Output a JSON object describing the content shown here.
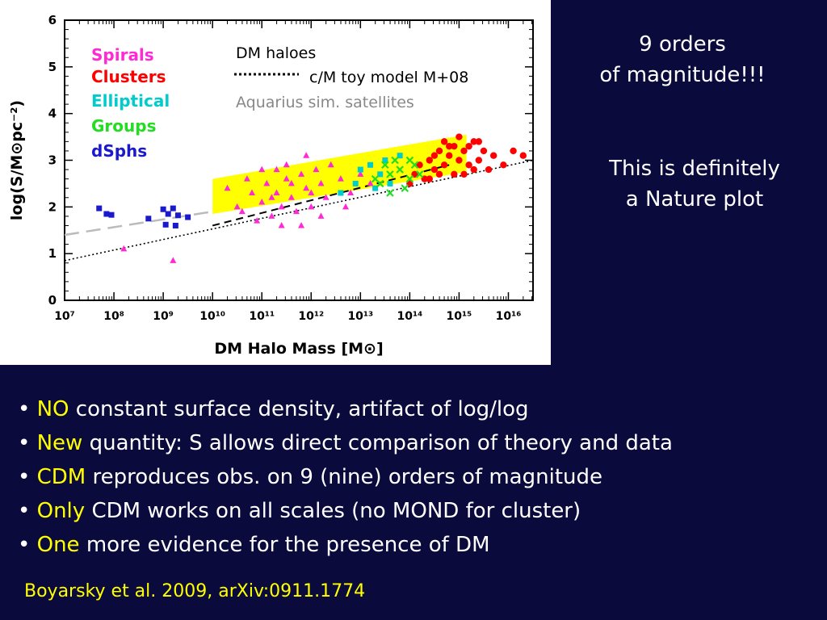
{
  "chart_data": {
    "type": "scatter",
    "xlabel": "DM Halo Mass [M⊙]",
    "ylabel": "log(S/M⊙pc⁻²)",
    "xscale": "log",
    "xlim_exp": [
      7,
      16.5
    ],
    "ylim": [
      0,
      6
    ],
    "x_tick_labels": [
      "10⁷",
      "10⁸",
      "10⁹",
      "10¹⁰",
      "10¹¹",
      "10¹²",
      "10¹³",
      "10¹⁴",
      "10¹⁵",
      "10¹⁶"
    ],
    "x_tick_exps": [
      7,
      8,
      9,
      10,
      11,
      12,
      13,
      14,
      15,
      16
    ],
    "y_tick_labels": [
      "0",
      "1",
      "2",
      "3",
      "4",
      "5",
      "6"
    ],
    "y_tick_values": [
      0,
      1,
      2,
      3,
      4,
      5,
      6
    ],
    "band": {
      "label": "DM haloes",
      "color": "#ffff00",
      "polygon": [
        [
          10,
          1.85
        ],
        [
          10,
          2.6
        ],
        [
          15.15,
          3.55
        ],
        [
          15.15,
          2.75
        ]
      ]
    },
    "lines": [
      {
        "name": "c/M toy model M+08",
        "style": "dotted",
        "color": "#000000",
        "points": [
          [
            7,
            0.85
          ],
          [
            16.5,
            3.0
          ]
        ]
      },
      {
        "name": "",
        "style": "dashed",
        "color": "#000000",
        "points": [
          [
            10,
            1.6
          ],
          [
            14.8,
            2.9
          ]
        ]
      },
      {
        "name": "Aquarius sim. satellites",
        "style": "long-dash",
        "color": "#bbbbbb",
        "points": [
          [
            7,
            1.4
          ],
          [
            10,
            1.9
          ]
        ]
      }
    ],
    "series": [
      {
        "name": "Spirals",
        "color": "#ff2ad4",
        "marker": "triangle",
        "points": [
          [
            8.2,
            1.1
          ],
          [
            9.2,
            0.85
          ],
          [
            10.3,
            2.4
          ],
          [
            10.6,
            1.9
          ],
          [
            10.8,
            2.3
          ],
          [
            10.9,
            1.7
          ],
          [
            11.0,
            2.1
          ],
          [
            11.1,
            2.5
          ],
          [
            11.2,
            1.8
          ],
          [
            11.3,
            2.3
          ],
          [
            11.4,
            2.0
          ],
          [
            11.5,
            2.6
          ],
          [
            11.6,
            2.2
          ],
          [
            11.7,
            1.9
          ],
          [
            11.8,
            2.7
          ],
          [
            11.9,
            2.4
          ],
          [
            12.0,
            2.0
          ],
          [
            12.1,
            2.8
          ],
          [
            12.2,
            2.5
          ],
          [
            11.3,
            2.8
          ],
          [
            11.5,
            2.9
          ],
          [
            11.9,
            3.1
          ],
          [
            12.3,
            2.2
          ],
          [
            12.6,
            2.6
          ],
          [
            12.8,
            2.3
          ],
          [
            13.0,
            2.7
          ],
          [
            11.0,
            2.8
          ],
          [
            10.7,
            2.6
          ],
          [
            11.4,
            1.6
          ],
          [
            11.8,
            1.6
          ],
          [
            12.4,
            2.9
          ],
          [
            12.7,
            2.0
          ],
          [
            10.5,
            2.0
          ],
          [
            11.6,
            2.5
          ],
          [
            12.2,
            1.8
          ],
          [
            13.2,
            2.5
          ],
          [
            11.2,
            2.2
          ],
          [
            12.0,
            2.3
          ]
        ]
      },
      {
        "name": "Clusters",
        "color": "#ff0000",
        "marker": "circle",
        "points": [
          [
            14.0,
            2.5
          ],
          [
            14.2,
            2.9
          ],
          [
            14.3,
            2.6
          ],
          [
            14.4,
            3.0
          ],
          [
            14.5,
            2.8
          ],
          [
            14.6,
            3.2
          ],
          [
            14.7,
            2.9
          ],
          [
            14.8,
            3.1
          ],
          [
            14.9,
            3.3
          ],
          [
            15.0,
            3.0
          ],
          [
            15.1,
            3.2
          ],
          [
            15.2,
            2.9
          ],
          [
            15.3,
            3.4
          ],
          [
            15.4,
            3.0
          ],
          [
            15.5,
            3.2
          ],
          [
            15.6,
            2.8
          ],
          [
            15.7,
            3.1
          ],
          [
            14.6,
            2.7
          ],
          [
            14.8,
            3.3
          ],
          [
            15.0,
            3.5
          ],
          [
            15.2,
            3.3
          ],
          [
            14.4,
            2.6
          ],
          [
            14.7,
            3.4
          ],
          [
            15.3,
            2.8
          ],
          [
            14.9,
            2.7
          ],
          [
            15.1,
            2.7
          ],
          [
            16.1,
            3.2
          ],
          [
            16.3,
            3.1
          ],
          [
            15.9,
            2.9
          ],
          [
            14.5,
            3.1
          ],
          [
            15.4,
            3.4
          ],
          [
            14.1,
            2.7
          ]
        ]
      },
      {
        "name": "Elliptical",
        "color": "#00cccc",
        "marker": "square",
        "points": [
          [
            12.6,
            2.3
          ],
          [
            13.0,
            2.8
          ],
          [
            13.2,
            2.9
          ],
          [
            13.5,
            3.0
          ],
          [
            13.8,
            3.1
          ],
          [
            13.3,
            2.4
          ],
          [
            13.6,
            2.5
          ],
          [
            12.9,
            2.5
          ],
          [
            13.4,
            2.7
          ]
        ]
      },
      {
        "name": "Groups",
        "color": "#22dd22",
        "marker": "cross",
        "points": [
          [
            13.3,
            2.6
          ],
          [
            13.5,
            2.9
          ],
          [
            13.6,
            2.7
          ],
          [
            13.8,
            2.8
          ],
          [
            14.0,
            2.6
          ],
          [
            14.1,
            2.9
          ],
          [
            13.7,
            3.0
          ],
          [
            13.4,
            2.5
          ],
          [
            13.9,
            2.4
          ],
          [
            14.2,
            2.7
          ],
          [
            13.6,
            2.3
          ],
          [
            14.0,
            3.0
          ]
        ]
      },
      {
        "name": "dSphs",
        "color": "#1a1acc",
        "marker": "square",
        "points": [
          [
            7.7,
            1.97
          ],
          [
            7.85,
            1.85
          ],
          [
            7.95,
            1.83
          ],
          [
            8.7,
            1.75
          ],
          [
            9.0,
            1.95
          ],
          [
            9.1,
            1.85
          ],
          [
            9.2,
            1.97
          ],
          [
            9.3,
            1.82
          ],
          [
            9.5,
            1.78
          ],
          [
            9.25,
            1.6
          ],
          [
            9.05,
            1.62
          ]
        ]
      }
    ]
  },
  "legend": {
    "spirals": "Spirals",
    "clusters": "Clusters",
    "elliptical": "Elliptical",
    "groups": "Groups",
    "dsphs": "dSphs",
    "dm_haloes": "DM haloes",
    "toy_model": "c/M toy model M+08",
    "aquarius": "Aquarius sim. satellites"
  },
  "notes": {
    "orders_line1": "9 orders",
    "orders_line2": "of magnitude!!!",
    "nature_line1": "This is definitely",
    "nature_line2": "a Nature plot"
  },
  "bullets": [
    {
      "key": "NO",
      "text": "constant surface density, artifact of log/log"
    },
    {
      "key": "New",
      "text": "quantity: S allows direct comparison of theory and data"
    },
    {
      "key": "CDM",
      "text": "reproduces obs. on 9 (nine) orders of magnitude"
    },
    {
      "key": "Only",
      "text": "CDM works on all scales (no MOND for cluster)"
    },
    {
      "key": "One",
      "text": "more evidence for the presence of DM"
    }
  ],
  "citation": "Boyarsky et al. 2009, arXiv:0911.1774",
  "colors": {
    "background": "#0a0a3c",
    "accent": "#ffff00",
    "text": "#ffffff"
  }
}
